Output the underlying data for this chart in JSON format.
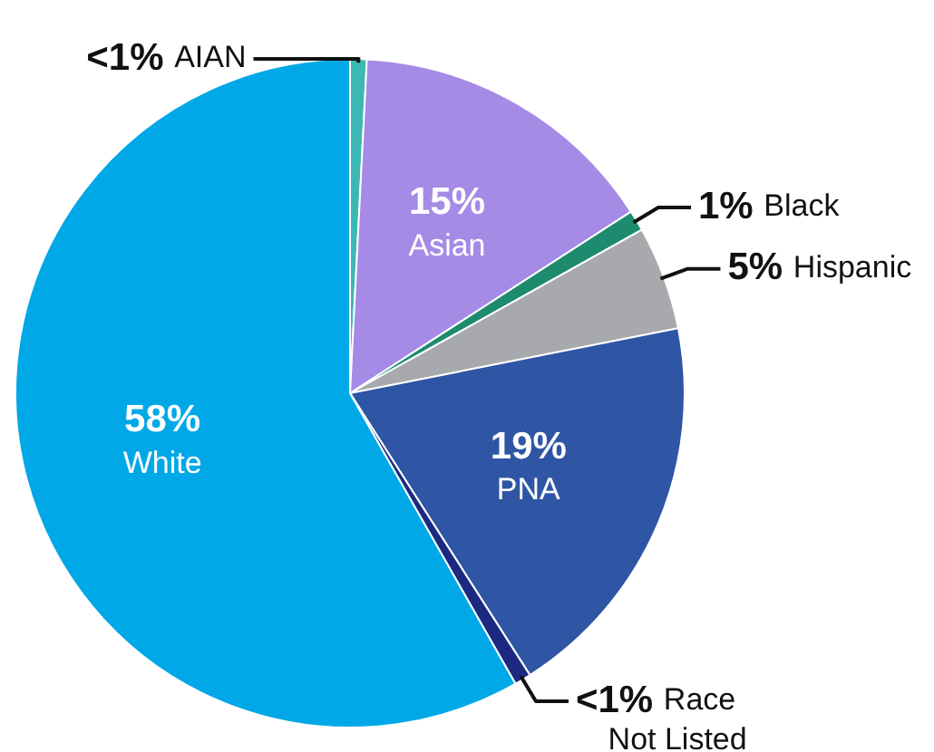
{
  "chart_data": {
    "type": "pie",
    "categories": [
      "AIAN",
      "Asian",
      "Black",
      "Hispanic",
      "PNA",
      "Race Not Listed",
      "White"
    ],
    "values": [
      0.8,
      15,
      1,
      5,
      19,
      0.8,
      58
    ],
    "colors": [
      "#3cb8b4",
      "#a58ae6",
      "#1e8a6e",
      "#a7a9ac",
      "#2f55a5",
      "#1b2a80",
      "#00a8e8"
    ],
    "value_labels": [
      "<1%",
      "15%",
      "1%",
      "5%",
      "19%",
      "<1%",
      "58%"
    ],
    "legend": false
  }
}
